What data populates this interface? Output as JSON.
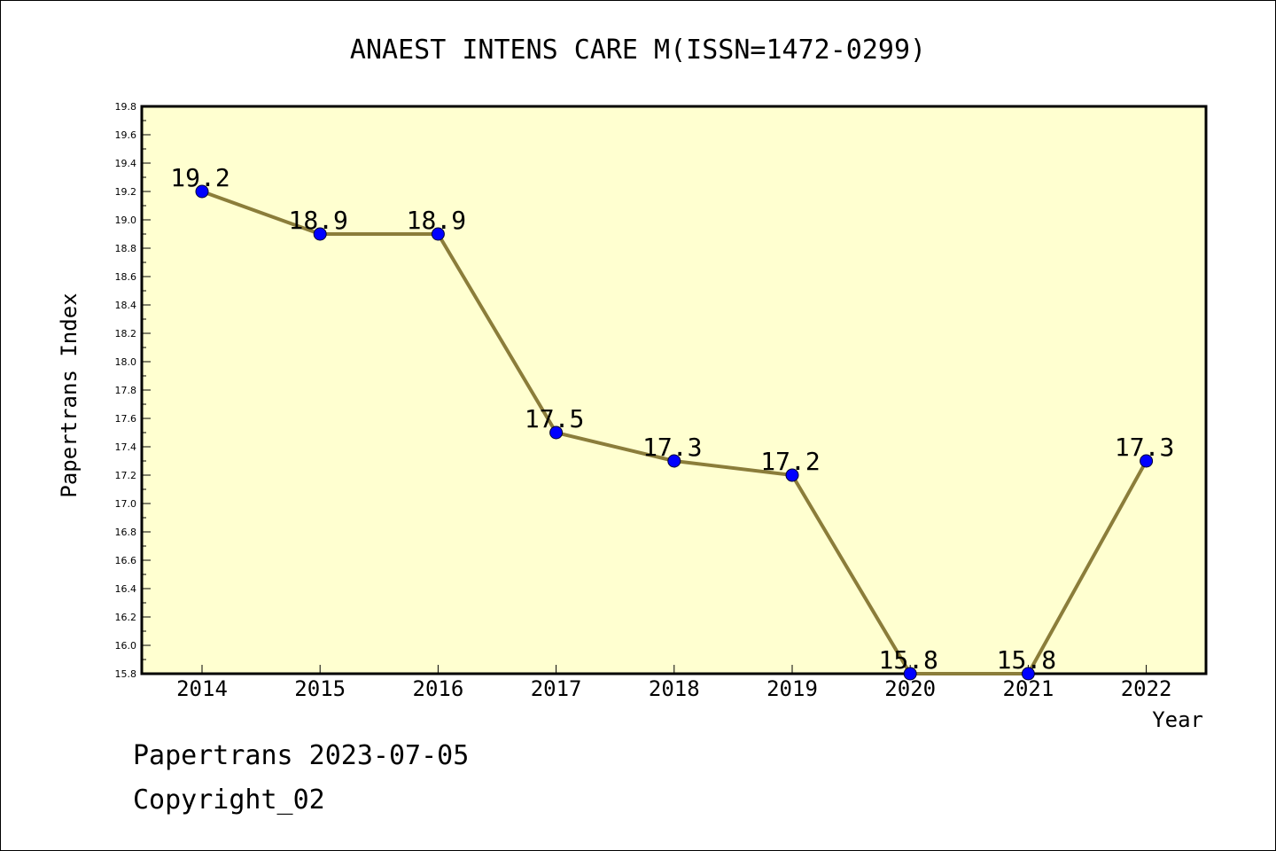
{
  "footer": {
    "line1": "Papertrans 2023-07-05",
    "line2": "Copyright_02"
  },
  "chart_data": {
    "type": "line",
    "title": "ANAEST INTENS CARE M(ISSN=1472-0299)",
    "xlabel": "Year",
    "ylabel": "Papertrans Index",
    "categories": [
      "2014",
      "2015",
      "2016",
      "2017",
      "2018",
      "2019",
      "2020",
      "2021",
      "2022"
    ],
    "values": [
      19.2,
      18.9,
      18.9,
      17.5,
      17.3,
      17.2,
      15.8,
      15.8,
      17.3
    ],
    "data_labels": [
      "19.2",
      "18.9",
      "18.9",
      "17.5",
      "17.3",
      "17.2",
      "15.8",
      "15.8",
      "17.3"
    ],
    "ylim": [
      15.8,
      19.8
    ],
    "yticks": [
      "15.8",
      "16.0",
      "16.2",
      "16.4",
      "16.6",
      "16.8",
      "17.0",
      "17.2",
      "17.4",
      "17.6",
      "17.8",
      "18.0",
      "18.2",
      "18.4",
      "18.6",
      "18.8",
      "19.0",
      "19.2",
      "19.4",
      "19.6",
      "19.8"
    ],
    "grid": false,
    "legend": "none",
    "colors": {
      "plot_background": "#ffffd0",
      "line": "#8b7d3a",
      "marker": "#0000ff"
    }
  }
}
